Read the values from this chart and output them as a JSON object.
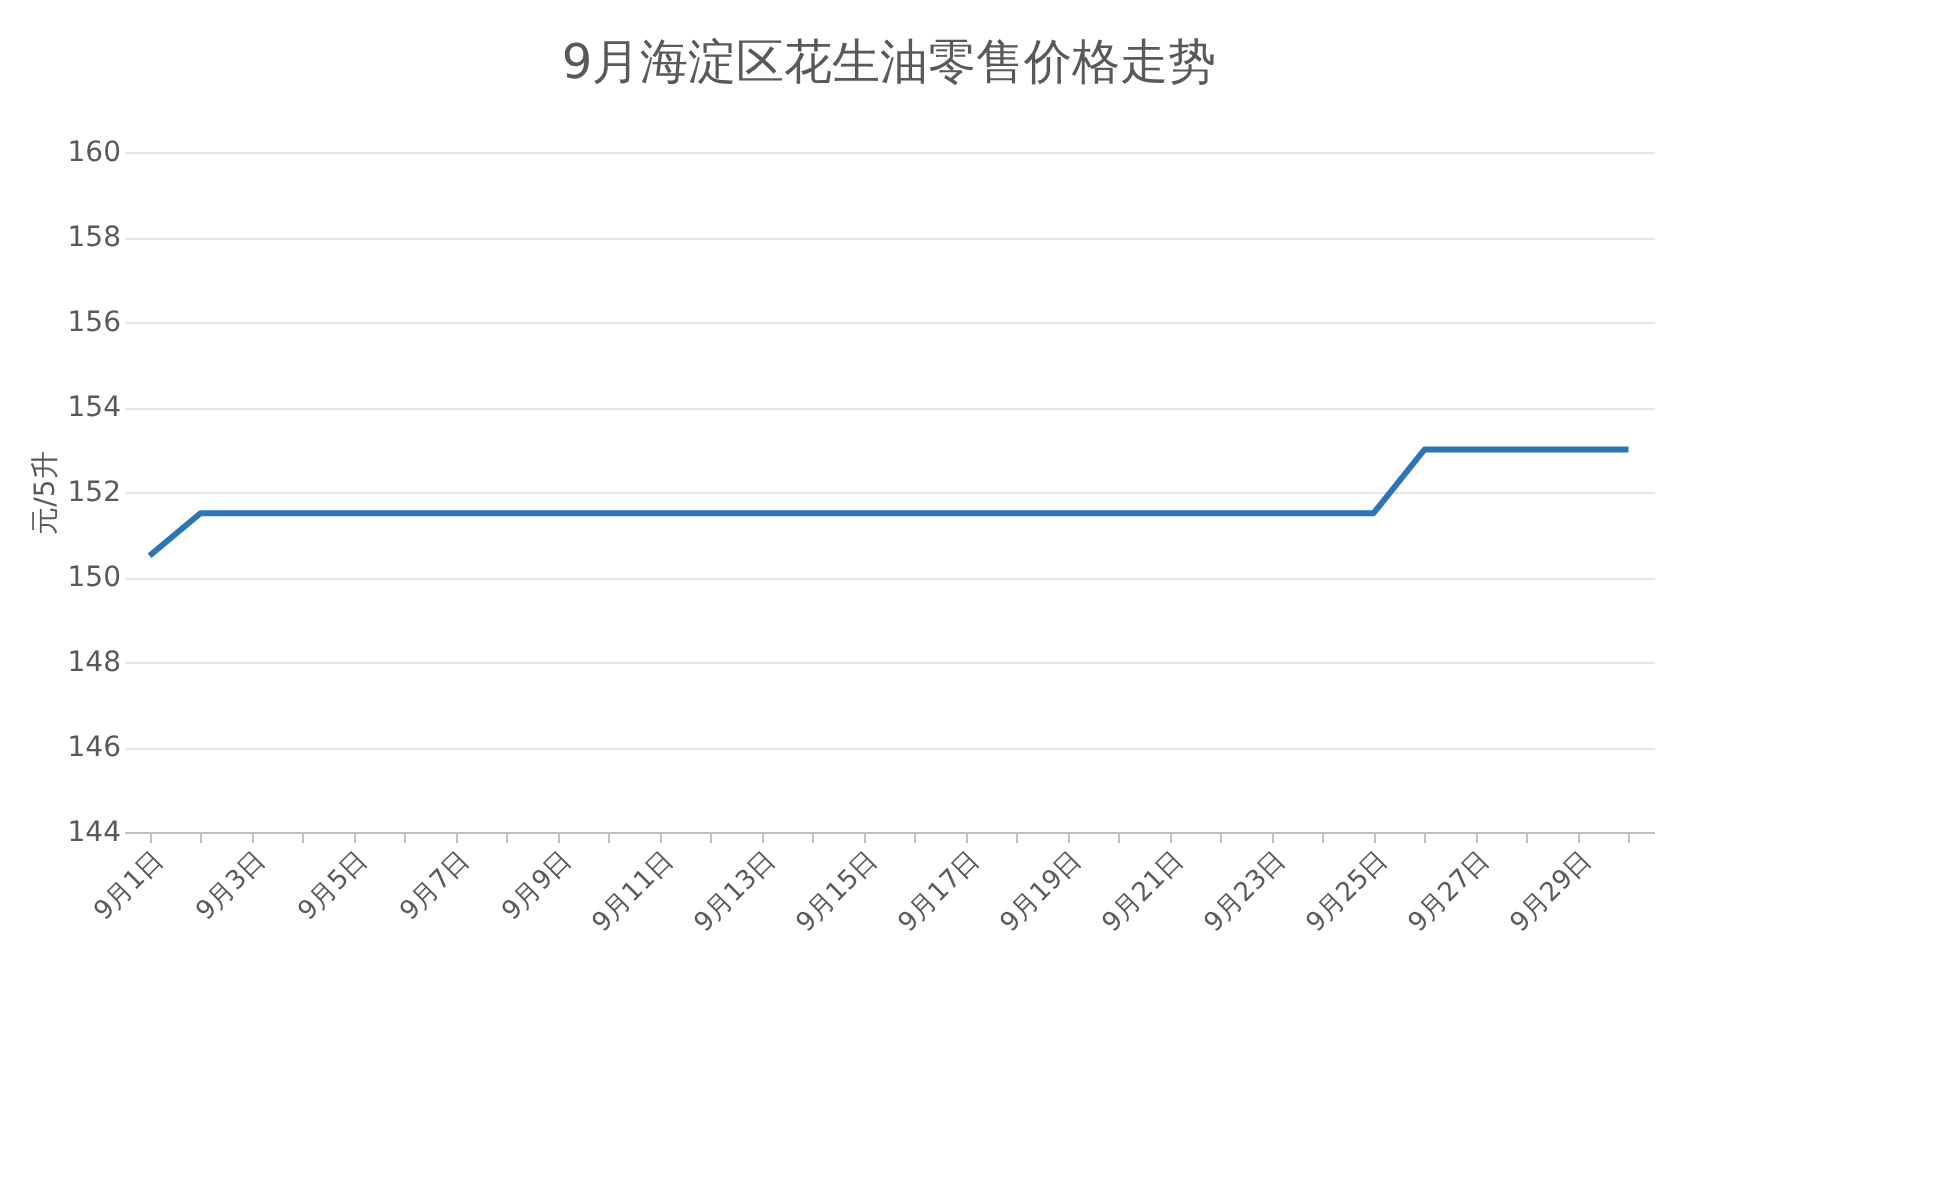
{
  "chart_data": {
    "type": "line",
    "title": "9月海淀区花生油零售价格走势",
    "ylabel": "元/5升",
    "categories": [
      "9月1日",
      null,
      "9月3日",
      null,
      "9月5日",
      null,
      "9月7日",
      null,
      "9月9日",
      null,
      "9月11日",
      null,
      "9月13日",
      null,
      "9月15日",
      null,
      "9月17日",
      null,
      "9月19日",
      null,
      "9月21日",
      null,
      "9月23日",
      null,
      "9月25日",
      null,
      "9月27日",
      null,
      "9月29日",
      null
    ],
    "series": [
      {
        "color": "#2e75b6",
        "values": [
          150.5,
          151.5,
          151.5,
          151.5,
          151.5,
          151.5,
          151.5,
          151.5,
          151.5,
          151.5,
          151.5,
          151.5,
          151.5,
          151.5,
          151.5,
          151.5,
          151.5,
          151.5,
          151.5,
          151.5,
          151.5,
          151.5,
          151.5,
          151.5,
          151.5,
          153,
          153,
          153,
          153,
          153
        ]
      }
    ],
    "ylim": [
      144,
      160
    ],
    "yticks": [
      144,
      146,
      148,
      150,
      152,
      154,
      156,
      158,
      160
    ],
    "grid": "y",
    "marker": "none",
    "line_style": "solid"
  }
}
